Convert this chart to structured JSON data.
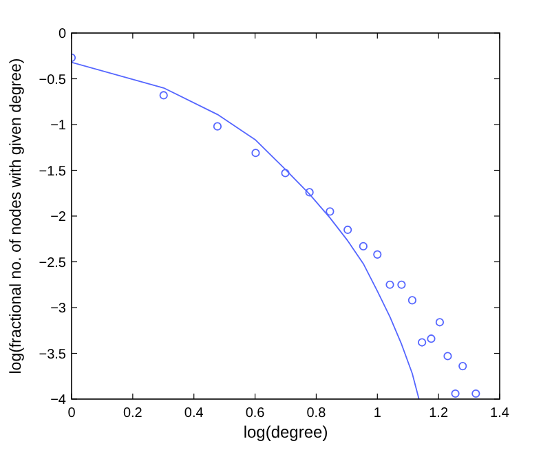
{
  "chart_data": {
    "type": "scatter",
    "xlabel": "log(degree)",
    "ylabel": "log(fractional no. of  nodes with given degree)",
    "xlim": [
      0,
      1.4
    ],
    "ylim": [
      -4,
      0
    ],
    "xticks": [
      0,
      0.2,
      0.4,
      0.6,
      0.8,
      1,
      1.2,
      1.4
    ],
    "yticks": [
      -4,
      -3.5,
      -3,
      -2.5,
      -2,
      -1.5,
      -1,
      -0.5,
      0
    ],
    "grid": false,
    "series": [
      {
        "type": "scatter",
        "color": "#5566ff",
        "marker": "circle",
        "x": [
          0,
          0.301,
          0.477,
          0.602,
          0.699,
          0.778,
          0.845,
          0.903,
          0.954,
          1,
          1.041,
          1.079,
          1.114,
          1.146,
          1.176,
          1.204,
          1.23,
          1.255,
          1.279,
          1.322
        ],
        "values": [
          -0.27,
          -0.68,
          -1.02,
          -1.31,
          -1.53,
          -1.74,
          -1.95,
          -2.15,
          -2.33,
          -2.42,
          -2.75,
          -2.75,
          -2.92,
          -3.38,
          -3.34,
          -3.16,
          -3.53,
          -3.94,
          -3.64,
          -3.94
        ]
      },
      {
        "type": "line",
        "color": "#5566ff",
        "marker": "none",
        "line_style": "solid",
        "x": [
          0,
          0.301,
          0.477,
          0.602,
          0.699,
          0.778,
          0.845,
          0.903,
          0.954,
          1,
          1.041,
          1.079,
          1.114,
          1.136
        ],
        "values": [
          -0.32,
          -0.6,
          -0.89,
          -1.17,
          -1.49,
          -1.76,
          -2.02,
          -2.27,
          -2.52,
          -2.82,
          -3.1,
          -3.4,
          -3.72,
          -4
        ]
      }
    ]
  }
}
